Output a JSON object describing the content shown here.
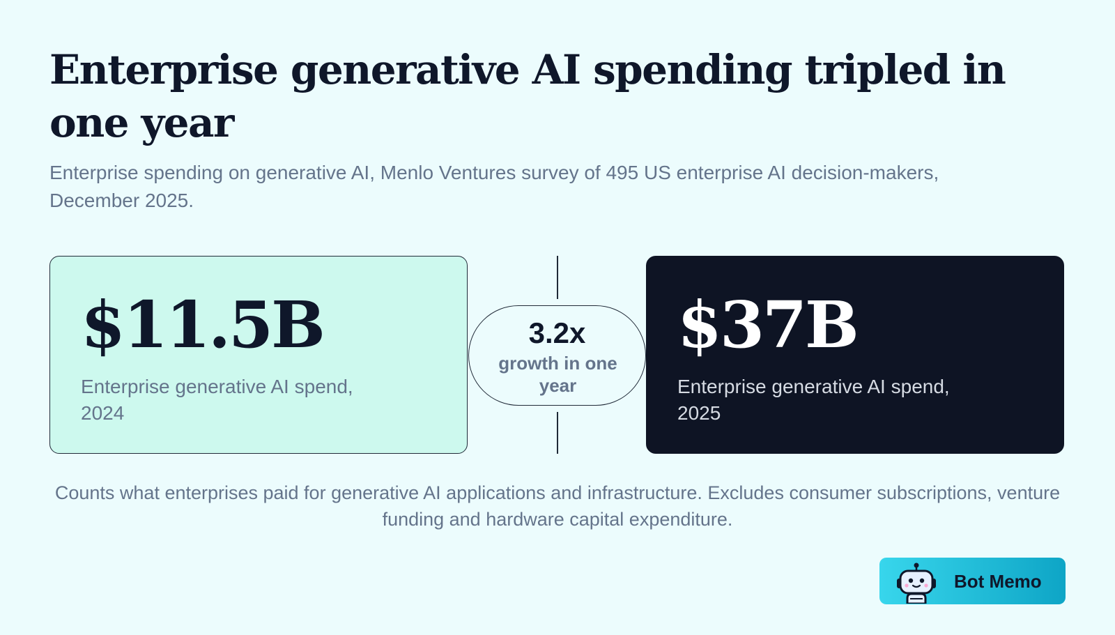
{
  "header": {
    "title": "Enterprise generative AI spending tripled in one year",
    "subtitle": "Enterprise spending on generative AI, Menlo Ventures survey of 495 US enterprise AI decision-makers, December 2025."
  },
  "comparison": {
    "left": {
      "value": "$11.5B",
      "label": "Enterprise generative AI spend, 2024"
    },
    "growth": {
      "value": "3.2x",
      "label": "growth in one year"
    },
    "right": {
      "value": "$37B",
      "label": "Enterprise generative AI spend, 2025"
    }
  },
  "footnote": "Counts what enterprises paid for generative AI applications and infrastructure. Excludes consumer subscriptions, venture funding and hardware capital expenditure.",
  "brand": {
    "name": "Bot Memo",
    "icon": "robot-icon"
  },
  "colors": {
    "background": "#ecfcfd",
    "card_2024": "#cdf9ee",
    "card_2025": "#0e1424",
    "text_dark": "#0f172a",
    "text_muted": "#64748b",
    "brand_gradient_start": "#38d6ec",
    "brand_gradient_end": "#0ea5c6"
  }
}
